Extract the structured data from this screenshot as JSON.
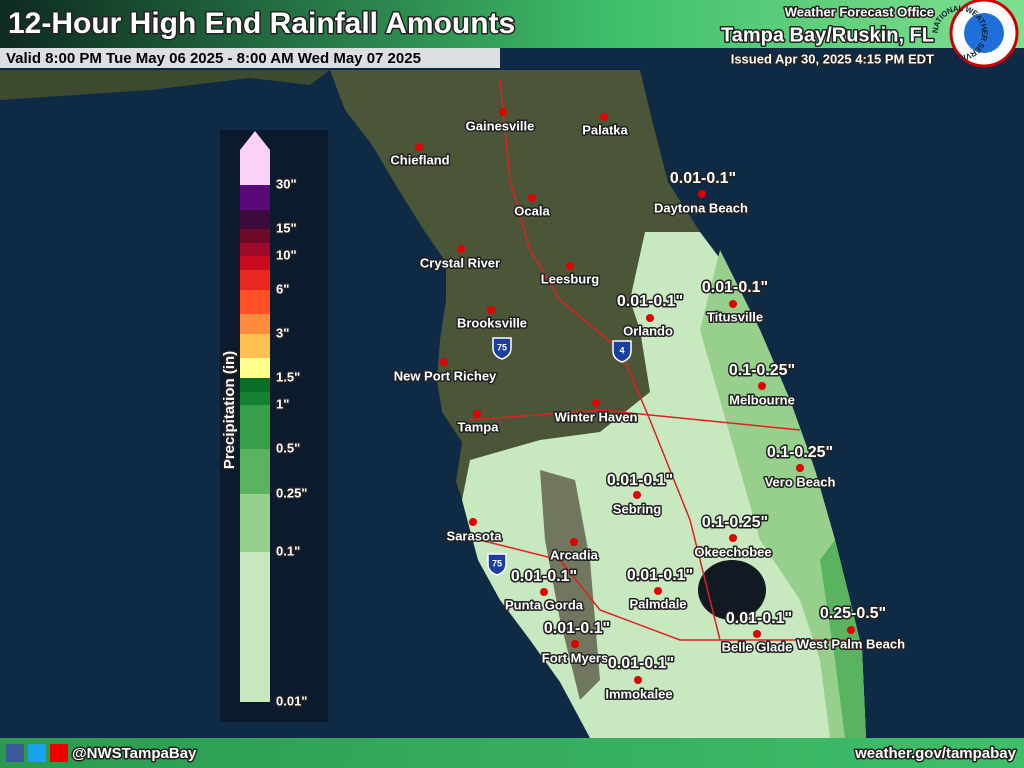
{
  "header": {
    "title": "12-Hour High End Rainfall Amounts",
    "valid": "Valid 8:00 PM Tue May 06 2025 - 8:00 AM Wed May 07 2025",
    "office": "Weather Forecast Office",
    "location": "Tampa Bay/Ruskin, FL",
    "issued": "Issued Apr 30, 2025 4:15 PM EDT",
    "logo": "NATIONAL WEATHER SERVICE"
  },
  "legend": {
    "title": "Precipitation (in)",
    "labels": [
      "30\"",
      "15\"",
      "10\"",
      "6\"",
      "3\"",
      "1.5\"",
      "1\"",
      "0.5\"",
      "0.25\"",
      "0.1\"",
      "0.01\""
    ]
  },
  "shields": [
    "75",
    "4",
    "75"
  ],
  "cities": [
    {
      "name": "Gainesville"
    },
    {
      "name": "Palatka"
    },
    {
      "name": "Chiefland"
    },
    {
      "name": "Ocala"
    },
    {
      "name": "Daytona Beach",
      "amount": "0.01-0.1\""
    },
    {
      "name": "Crystal River"
    },
    {
      "name": "Leesburg"
    },
    {
      "name": "Orlando",
      "amount": "0.01-0.1\""
    },
    {
      "name": "Titusville",
      "amount": "0.01-0.1\""
    },
    {
      "name": "Brooksville"
    },
    {
      "name": "New Port Richey"
    },
    {
      "name": "Melbourne",
      "amount": "0.1-0.25\""
    },
    {
      "name": "Tampa"
    },
    {
      "name": "Winter Haven"
    },
    {
      "name": "Vero Beach",
      "amount": "0.1-0.25\""
    },
    {
      "name": "Sebring",
      "amount": "0.01-0.1\""
    },
    {
      "name": "Sarasota"
    },
    {
      "name": "Okeechobee",
      "amount": "0.1-0.25\""
    },
    {
      "name": "Arcadia"
    },
    {
      "name": "Punta Gorda",
      "amount": "0.01-0.1\""
    },
    {
      "name": "Palmdale",
      "amount": "0.01-0.1\""
    },
    {
      "name": "Belle Glade",
      "amount": "0.01-0.1\""
    },
    {
      "name": "West Palm Beach",
      "amount": "0.25-0.5\""
    },
    {
      "name": "Fort Myers",
      "amount": "0.01-0.1\""
    },
    {
      "name": "Immokalee",
      "amount": "0.01-0.1\""
    }
  ],
  "footer": {
    "handle": "@NWSTampaBay",
    "url": "weather.gov/tampabay"
  }
}
